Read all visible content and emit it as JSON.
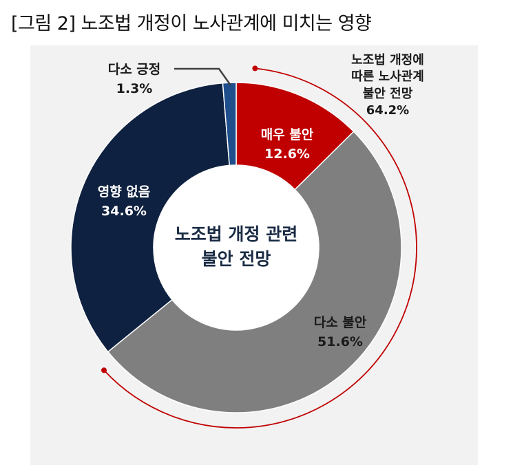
{
  "figure_title": "[그림 2] 노조법 개정이 노사관계에 미치는 영향",
  "chart_data": {
    "type": "pie",
    "title": "노조법 개정 관련 불안 전망",
    "slices": [
      {
        "label": "매우 불안",
        "value": 12.6,
        "value_text": "12.6%",
        "color": "#c00000"
      },
      {
        "label": "다소 불안",
        "value": 51.6,
        "value_text": "51.6%",
        "color": "#7f7f7f"
      },
      {
        "label": "영향 없음",
        "value": 34.6,
        "value_text": "34.6%",
        "color": "#0f2140"
      },
      {
        "label": "다소 긍정",
        "value": 1.3,
        "value_text": "1.3%",
        "color": "#1f4e8c"
      }
    ],
    "annotation": {
      "lines": [
        "노조법 개정에",
        "따른 노사관계",
        "불안 전망"
      ],
      "value_text": "64.2%",
      "value": 64.2,
      "color": "#c00000"
    }
  }
}
